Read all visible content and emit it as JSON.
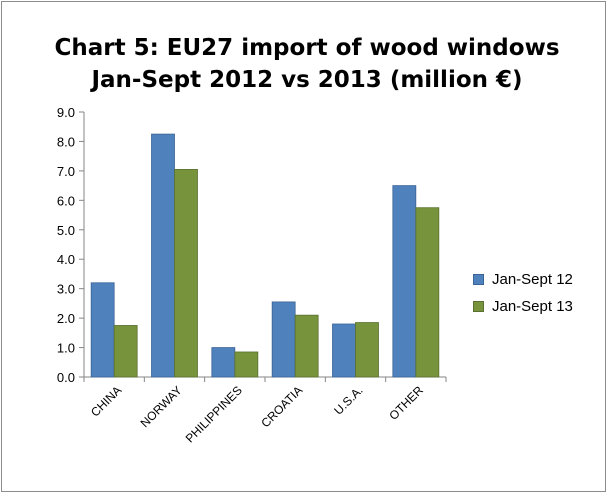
{
  "chart_data": {
    "type": "bar",
    "title_lines": [
      "Chart 5: EU27 import of wood windows",
      "Jan-Sept 2012 vs 2013 (million €)"
    ],
    "categories": [
      "CHINA",
      "NORWAY",
      "PHILIPPINES",
      "CROATIA",
      "U.S.A.",
      "OTHER"
    ],
    "series": [
      {
        "name": "Jan-Sept 12",
        "color": "#4f81bd",
        "stroke": "#3a6496",
        "values": [
          3.2,
          8.25,
          1.0,
          2.55,
          1.8,
          6.5
        ]
      },
      {
        "name": "Jan-Sept 13",
        "color": "#77933c",
        "stroke": "#5a7030",
        "values": [
          1.75,
          7.05,
          0.85,
          2.1,
          1.85,
          5.75
        ]
      }
    ],
    "ylim": [
      0,
      9
    ],
    "ytick_step": 1,
    "ytick_format": "0.0",
    "grid": false,
    "legend_position": "right",
    "xlabel": "",
    "ylabel": ""
  }
}
